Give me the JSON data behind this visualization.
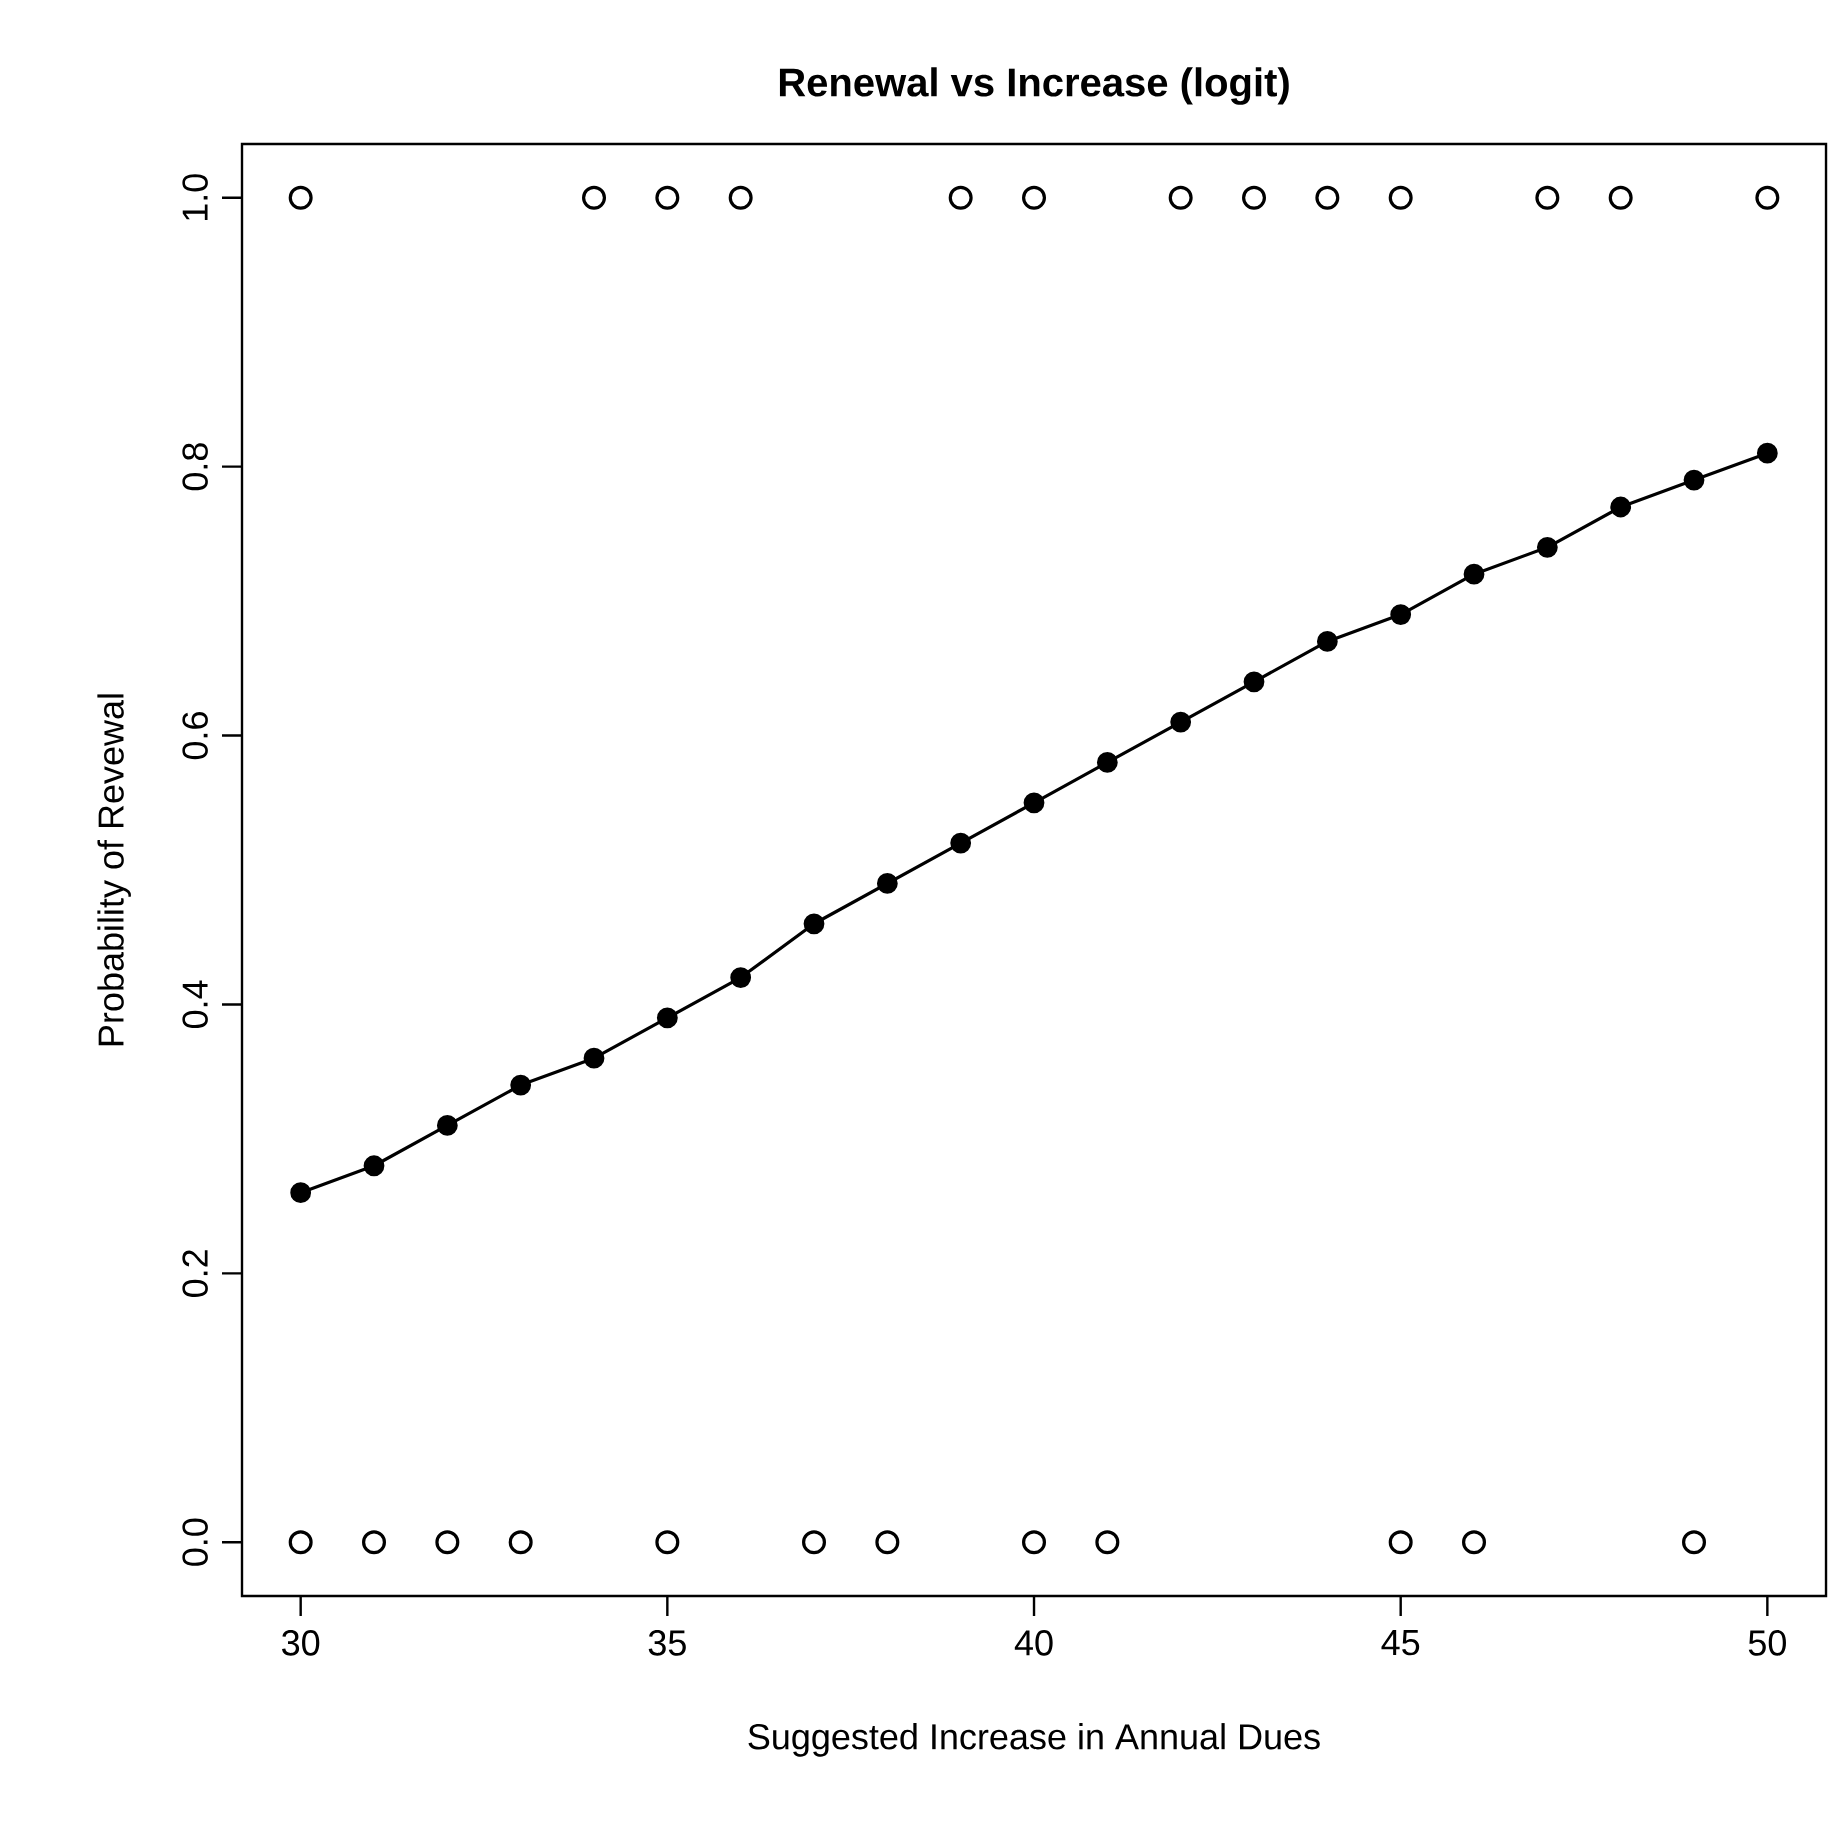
{
  "chart_data": {
    "type": "scatter",
    "title": "Renewal vs Increase (logit)",
    "xlabel": "Suggested Increase in Annual Dues",
    "ylabel": "Probability of Revewal",
    "xlim": [
      29.2,
      50.8
    ],
    "ylim": [
      -0.04,
      1.04
    ],
    "xticks": [
      30,
      35,
      40,
      45,
      50
    ],
    "yticks": [
      {
        "value": 0,
        "label": "0.0"
      },
      0.2,
      0.4,
      0.6,
      0.8,
      {
        "value": 1,
        "label": "1.0"
      }
    ],
    "grid": false,
    "series": [
      {
        "marker": "circle",
        "color": "#000000",
        "x": [
          30,
          34,
          35,
          36,
          39,
          40,
          42,
          43,
          44,
          45,
          47,
          48,
          50
        ],
        "values": [
          1,
          1,
          1,
          1,
          1,
          1,
          1,
          1,
          1,
          1,
          1,
          1,
          1
        ]
      },
      {
        "marker": "circle",
        "color": "#000000",
        "x": [
          30,
          31,
          32,
          33,
          35,
          37,
          38,
          40,
          41,
          45,
          46,
          49
        ],
        "values": [
          0,
          0,
          0,
          0,
          0,
          0,
          0,
          0,
          0,
          0,
          0,
          0
        ]
      },
      {
        "type": "line",
        "marker": "circle",
        "color": "#000000",
        "x": [
          30,
          31,
          32,
          33,
          34,
          35,
          36,
          37,
          38,
          39,
          40,
          41,
          42,
          43,
          44,
          45,
          46,
          47,
          48,
          49,
          50
        ],
        "values": [
          0.26,
          0.28,
          0.31,
          0.34,
          0.36,
          0.39,
          0.42,
          0.46,
          0.49,
          0.52,
          0.55,
          0.58,
          0.61,
          0.64,
          0.67,
          0.69,
          0.72,
          0.74,
          0.77,
          0.79,
          0.81
        ]
      }
    ]
  }
}
